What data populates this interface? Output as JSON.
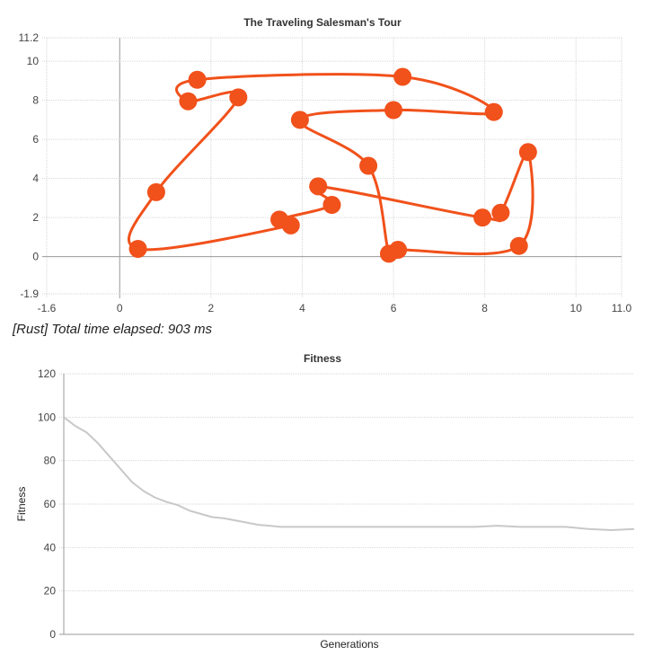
{
  "status": {
    "text": "[Rust] Total time elapsed: 903 ms"
  },
  "chart_data": [
    {
      "type": "line",
      "title": "The Traveling Salesman's Tour",
      "xlabel": "",
      "ylabel": "",
      "xlim": [
        -1.6,
        11.0
      ],
      "ylim": [
        -1.9,
        11.2
      ],
      "x_ticks": [
        "-1.6",
        "0",
        "2",
        "4",
        "6",
        "8",
        "10",
        "11.0"
      ],
      "y_ticks": [
        "11.2",
        "10",
        "8",
        "6",
        "4",
        "2",
        "0",
        "-1.9"
      ],
      "grid": true,
      "series_color": "#f1511b",
      "points": [
        {
          "x": 6.2,
          "y": 9.2
        },
        {
          "x": 8.2,
          "y": 7.4
        },
        {
          "x": 6.0,
          "y": 7.5
        },
        {
          "x": 3.95,
          "y": 7.0
        },
        {
          "x": 5.45,
          "y": 4.65
        },
        {
          "x": 5.9,
          "y": 0.15
        },
        {
          "x": 6.1,
          "y": 0.35
        },
        {
          "x": 8.75,
          "y": 0.55
        },
        {
          "x": 8.95,
          "y": 5.35
        },
        {
          "x": 8.35,
          "y": 2.25
        },
        {
          "x": 7.95,
          "y": 2.0
        },
        {
          "x": 4.35,
          "y": 3.6
        },
        {
          "x": 4.65,
          "y": 2.65
        },
        {
          "x": 3.5,
          "y": 1.9
        },
        {
          "x": 3.75,
          "y": 1.6
        },
        {
          "x": 0.4,
          "y": 0.4
        },
        {
          "x": 0.8,
          "y": 3.3
        },
        {
          "x": 2.6,
          "y": 8.15
        },
        {
          "x": 1.5,
          "y": 7.95
        },
        {
          "x": 1.7,
          "y": 9.05
        }
      ],
      "closed": true
    },
    {
      "type": "line",
      "title": "Fitness",
      "xlabel": "Generations",
      "ylabel": "Fitness",
      "ylim": [
        0,
        120
      ],
      "y_ticks": [
        "0",
        "20",
        "40",
        "60",
        "80",
        "100",
        "120"
      ],
      "grid": true,
      "series_color": "#c8c8c8",
      "x": [
        0,
        2,
        4,
        6,
        8,
        10,
        12,
        14,
        16,
        18,
        20,
        22,
        24,
        26,
        28,
        30,
        32,
        34,
        36,
        38,
        40,
        44,
        48,
        52,
        56,
        60,
        64,
        68,
        72,
        76,
        80,
        84,
        88,
        92,
        96,
        100
      ],
      "values": [
        100,
        96,
        93,
        88,
        82,
        76,
        70,
        66,
        63,
        61,
        59.5,
        57,
        55.5,
        54,
        53.5,
        52.5,
        51.5,
        50.5,
        50,
        49.5,
        49.5,
        49.5,
        49.5,
        49.5,
        49.5,
        49.5,
        49.5,
        49.5,
        49.5,
        50,
        49.5,
        49.5,
        49.5,
        48.5,
        48,
        48.5
      ]
    }
  ]
}
